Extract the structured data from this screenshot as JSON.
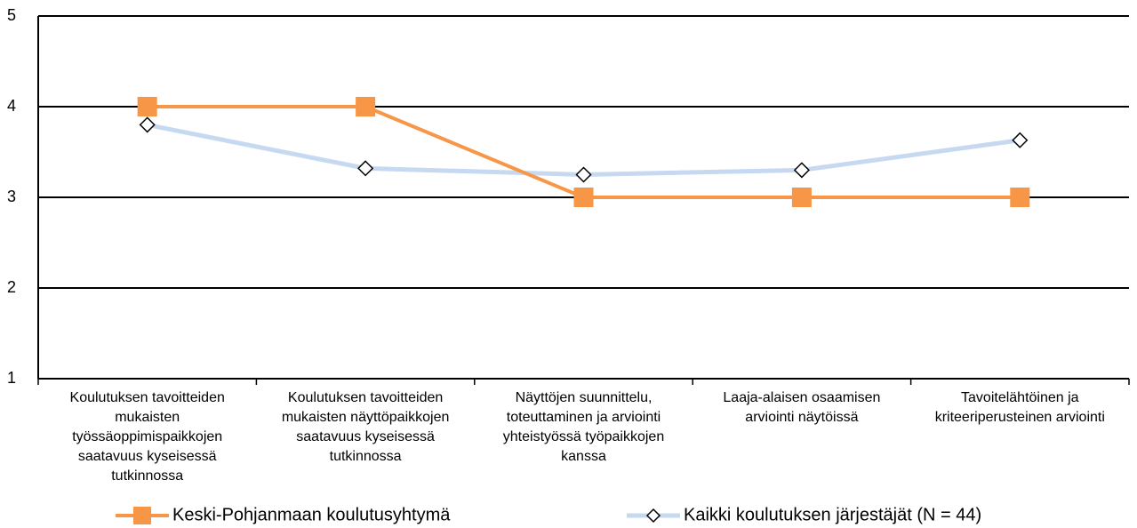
{
  "chart_data": {
    "type": "line",
    "categories": [
      "Koulutuksen tavoitteiden mukaisten työssäoppimispaikkojen saatavuus kyseisessä tutkinnossa",
      "Koulutuksen tavoitteiden mukaisten näyttöpaikkojen saatavuus kyseisessä tutkinnossa",
      "Näyttöjen suunnittelu, toteuttaminen ja arviointi yhteistyössä työpaikkojen kanssa",
      "Laaja-alaisen osaamisen arviointi näytöissä",
      "Tavoitelähtöinen ja kriteeriperusteinen arviointi"
    ],
    "series": [
      {
        "name": "Keski-Pohjanmaan koulutusyhtymä",
        "color": "#f79646",
        "values": [
          4,
          4,
          3,
          3,
          3
        ]
      },
      {
        "name": "Kaikki koulutuksen järjestäjät (N = 44)",
        "color": "#c6d9f1",
        "values": [
          3.8,
          3.32,
          3.25,
          3.3,
          3.63
        ]
      }
    ],
    "ylim": [
      1,
      5
    ],
    "yticks": [
      1,
      2,
      3,
      4,
      5
    ],
    "grid": true
  }
}
